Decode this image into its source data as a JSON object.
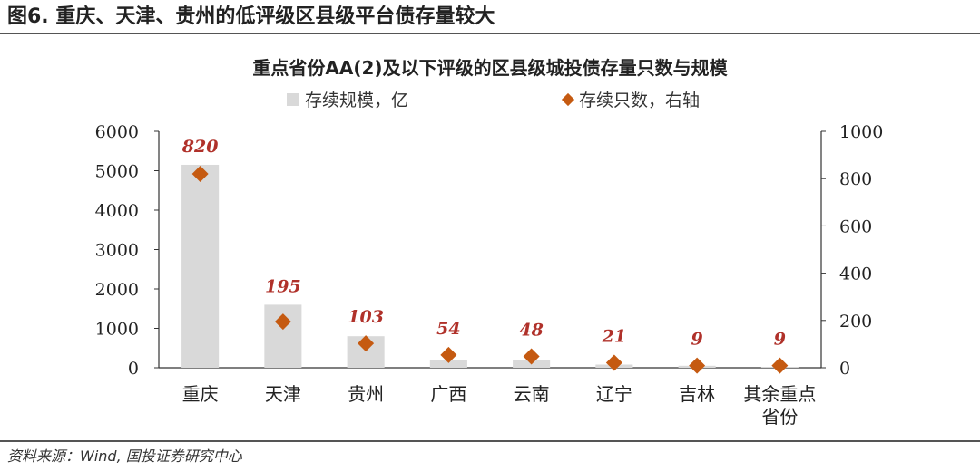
{
  "figure": {
    "title": "图6. 重庆、天津、贵州的低评级区县级平台债存量较大",
    "source": "资料来源：Wind, 国投证券研究中心"
  },
  "chart_data": {
    "type": "bar",
    "title": "重点省份AA(2)及以下评级的区县级城投债存量只数与规模",
    "categories": [
      "重庆",
      "天津",
      "贵州",
      "广西",
      "云南",
      "辽宁",
      "吉林",
      "其余重点省份"
    ],
    "series": [
      {
        "name": "存续规模，亿",
        "type": "bar",
        "axis": "left",
        "values": [
          5150,
          1600,
          800,
          200,
          200,
          80,
          50,
          15
        ],
        "color": "#d9d9d9"
      },
      {
        "name": "存续只数，右轴",
        "type": "scatter",
        "axis": "right",
        "marker": "diamond",
        "values": [
          820,
          195,
          103,
          54,
          48,
          21,
          9,
          9
        ],
        "color": "#c55a11"
      }
    ],
    "data_labels": [
      "820",
      "195",
      "103",
      "54",
      "48",
      "21",
      "9",
      "9"
    ],
    "y_left": {
      "ylim": [
        0,
        6000
      ],
      "ticks": [
        "0",
        "1000",
        "2000",
        "3000",
        "4000",
        "5000",
        "6000"
      ]
    },
    "y_right": {
      "ylim": [
        0,
        1000
      ],
      "ticks": [
        "0",
        "200",
        "400",
        "600",
        "800",
        "1000"
      ]
    },
    "legend_position": "top-center",
    "grid": false
  }
}
